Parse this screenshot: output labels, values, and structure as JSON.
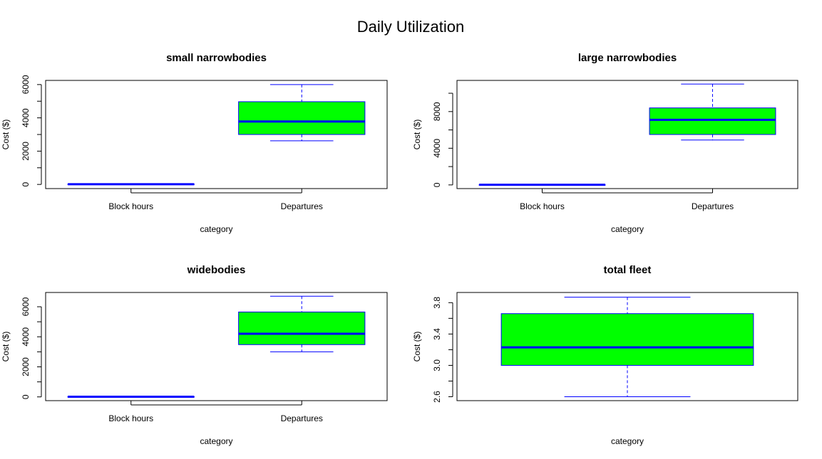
{
  "title": "Daily Utilization",
  "colors": {
    "box_fill": "#00ff00",
    "box_border": "#0000ff",
    "median": "#0000ff",
    "whisker": "#0000ff",
    "axis": "#000000"
  },
  "chart_data": [
    {
      "type": "box",
      "title": "small narrowbodies",
      "xlabel": "category",
      "ylabel": "Cost ($)",
      "categories": [
        "Block hours",
        "Departures"
      ],
      "ylim": [
        -250,
        6250
      ],
      "yticks": [
        0,
        2000,
        4000,
        6000
      ],
      "yminor": [
        1000,
        3000,
        5000
      ],
      "boxes": [
        {
          "category": "Block hours",
          "min": 11,
          "q1": 12,
          "median": 13,
          "q3": 14,
          "max": 15
        },
        {
          "category": "Departures",
          "min": 2620,
          "q1": 3000,
          "median": 3780,
          "q3": 4970,
          "max": 6000
        }
      ]
    },
    {
      "type": "box",
      "title": "large narrowbodies",
      "xlabel": "category",
      "ylabel": "Cost ($)",
      "categories": [
        "Block hours",
        "Departures"
      ],
      "ylim": [
        -400,
        11400
      ],
      "yticks": [
        0,
        4000,
        8000
      ],
      "yminor": [
        2000,
        6000,
        10000
      ],
      "boxes": [
        {
          "category": "Block hours",
          "min": 11,
          "q1": 12,
          "median": 13,
          "q3": 14,
          "max": 15
        },
        {
          "category": "Departures",
          "min": 4900,
          "q1": 5500,
          "median": 7100,
          "q3": 8400,
          "max": 11000
        }
      ]
    },
    {
      "type": "box",
      "title": "widebodies",
      "xlabel": "category",
      "ylabel": "Cost ($)",
      "categories": [
        "Block hours",
        "Departures"
      ],
      "ylim": [
        -250,
        6950
      ],
      "yticks": [
        0,
        2000,
        4000,
        6000
      ],
      "yminor": [
        1000,
        3000,
        5000
      ],
      "boxes": [
        {
          "category": "Block hours",
          "min": 11,
          "q1": 12,
          "median": 13,
          "q3": 14,
          "max": 15
        },
        {
          "category": "Departures",
          "min": 3000,
          "q1": 3480,
          "median": 4200,
          "q3": 5650,
          "max": 6700
        }
      ]
    },
    {
      "type": "box",
      "title": "total fleet",
      "xlabel": "category",
      "ylabel": "Cost ($)",
      "categories": [],
      "ylim": [
        2.55,
        3.93
      ],
      "yticks": [
        2.6,
        3.0,
        3.4,
        3.8
      ],
      "ytick_labels": [
        "2.6",
        "3.0",
        "3.4",
        "3.8"
      ],
      "yminor": [
        2.8,
        3.2,
        3.6
      ],
      "boxes": [
        {
          "category": "",
          "min": 2.6,
          "q1": 3.0,
          "median": 3.23,
          "q3": 3.66,
          "max": 3.87
        }
      ]
    }
  ]
}
